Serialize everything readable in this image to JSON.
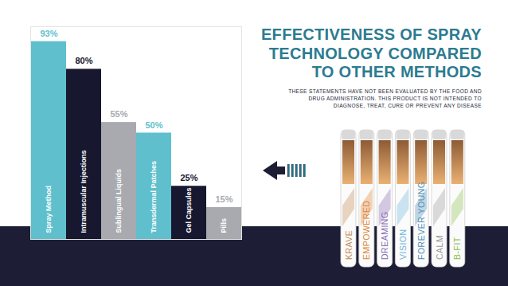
{
  "chart_data": {
    "type": "bar",
    "title": "EFFECTIVENESS OF SPRAY TECHNOLOGY COMPARED TO OTHER METHODS",
    "subtitle": "THESE STATEMENTS HAVE NOT BEEN EVALUATED BY THE FOOD AND DRUG ADMINISTRATION. THIS PRODUCT IS NOT INTENDED TO DIAGNOSE, TREAT, CURE OR PREVENT ANY DISEASE",
    "categories": [
      "Spray Method",
      "Intramuscular Injections",
      "Sublingual Liquids",
      "Transdermal Patches",
      "Gel Capsules",
      "Pills"
    ],
    "values": [
      93,
      80,
      55,
      50,
      25,
      15
    ],
    "value_labels": [
      "93%",
      "80%",
      "55%",
      "50%",
      "25%",
      "15%"
    ],
    "colors": [
      "#5fbfcd",
      "#17182f",
      "#a8aaaf",
      "#5fbfcd",
      "#17182f",
      "#a8aaaf"
    ],
    "ylim": [
      0,
      100
    ],
    "data_labels": true,
    "tick_labels": false,
    "annotations": [
      "KRAVE",
      "EMPOWERED",
      "DREAMING",
      "VISION",
      "FOREVER YOUNG",
      "CALM",
      "B-FIT"
    ]
  }
}
